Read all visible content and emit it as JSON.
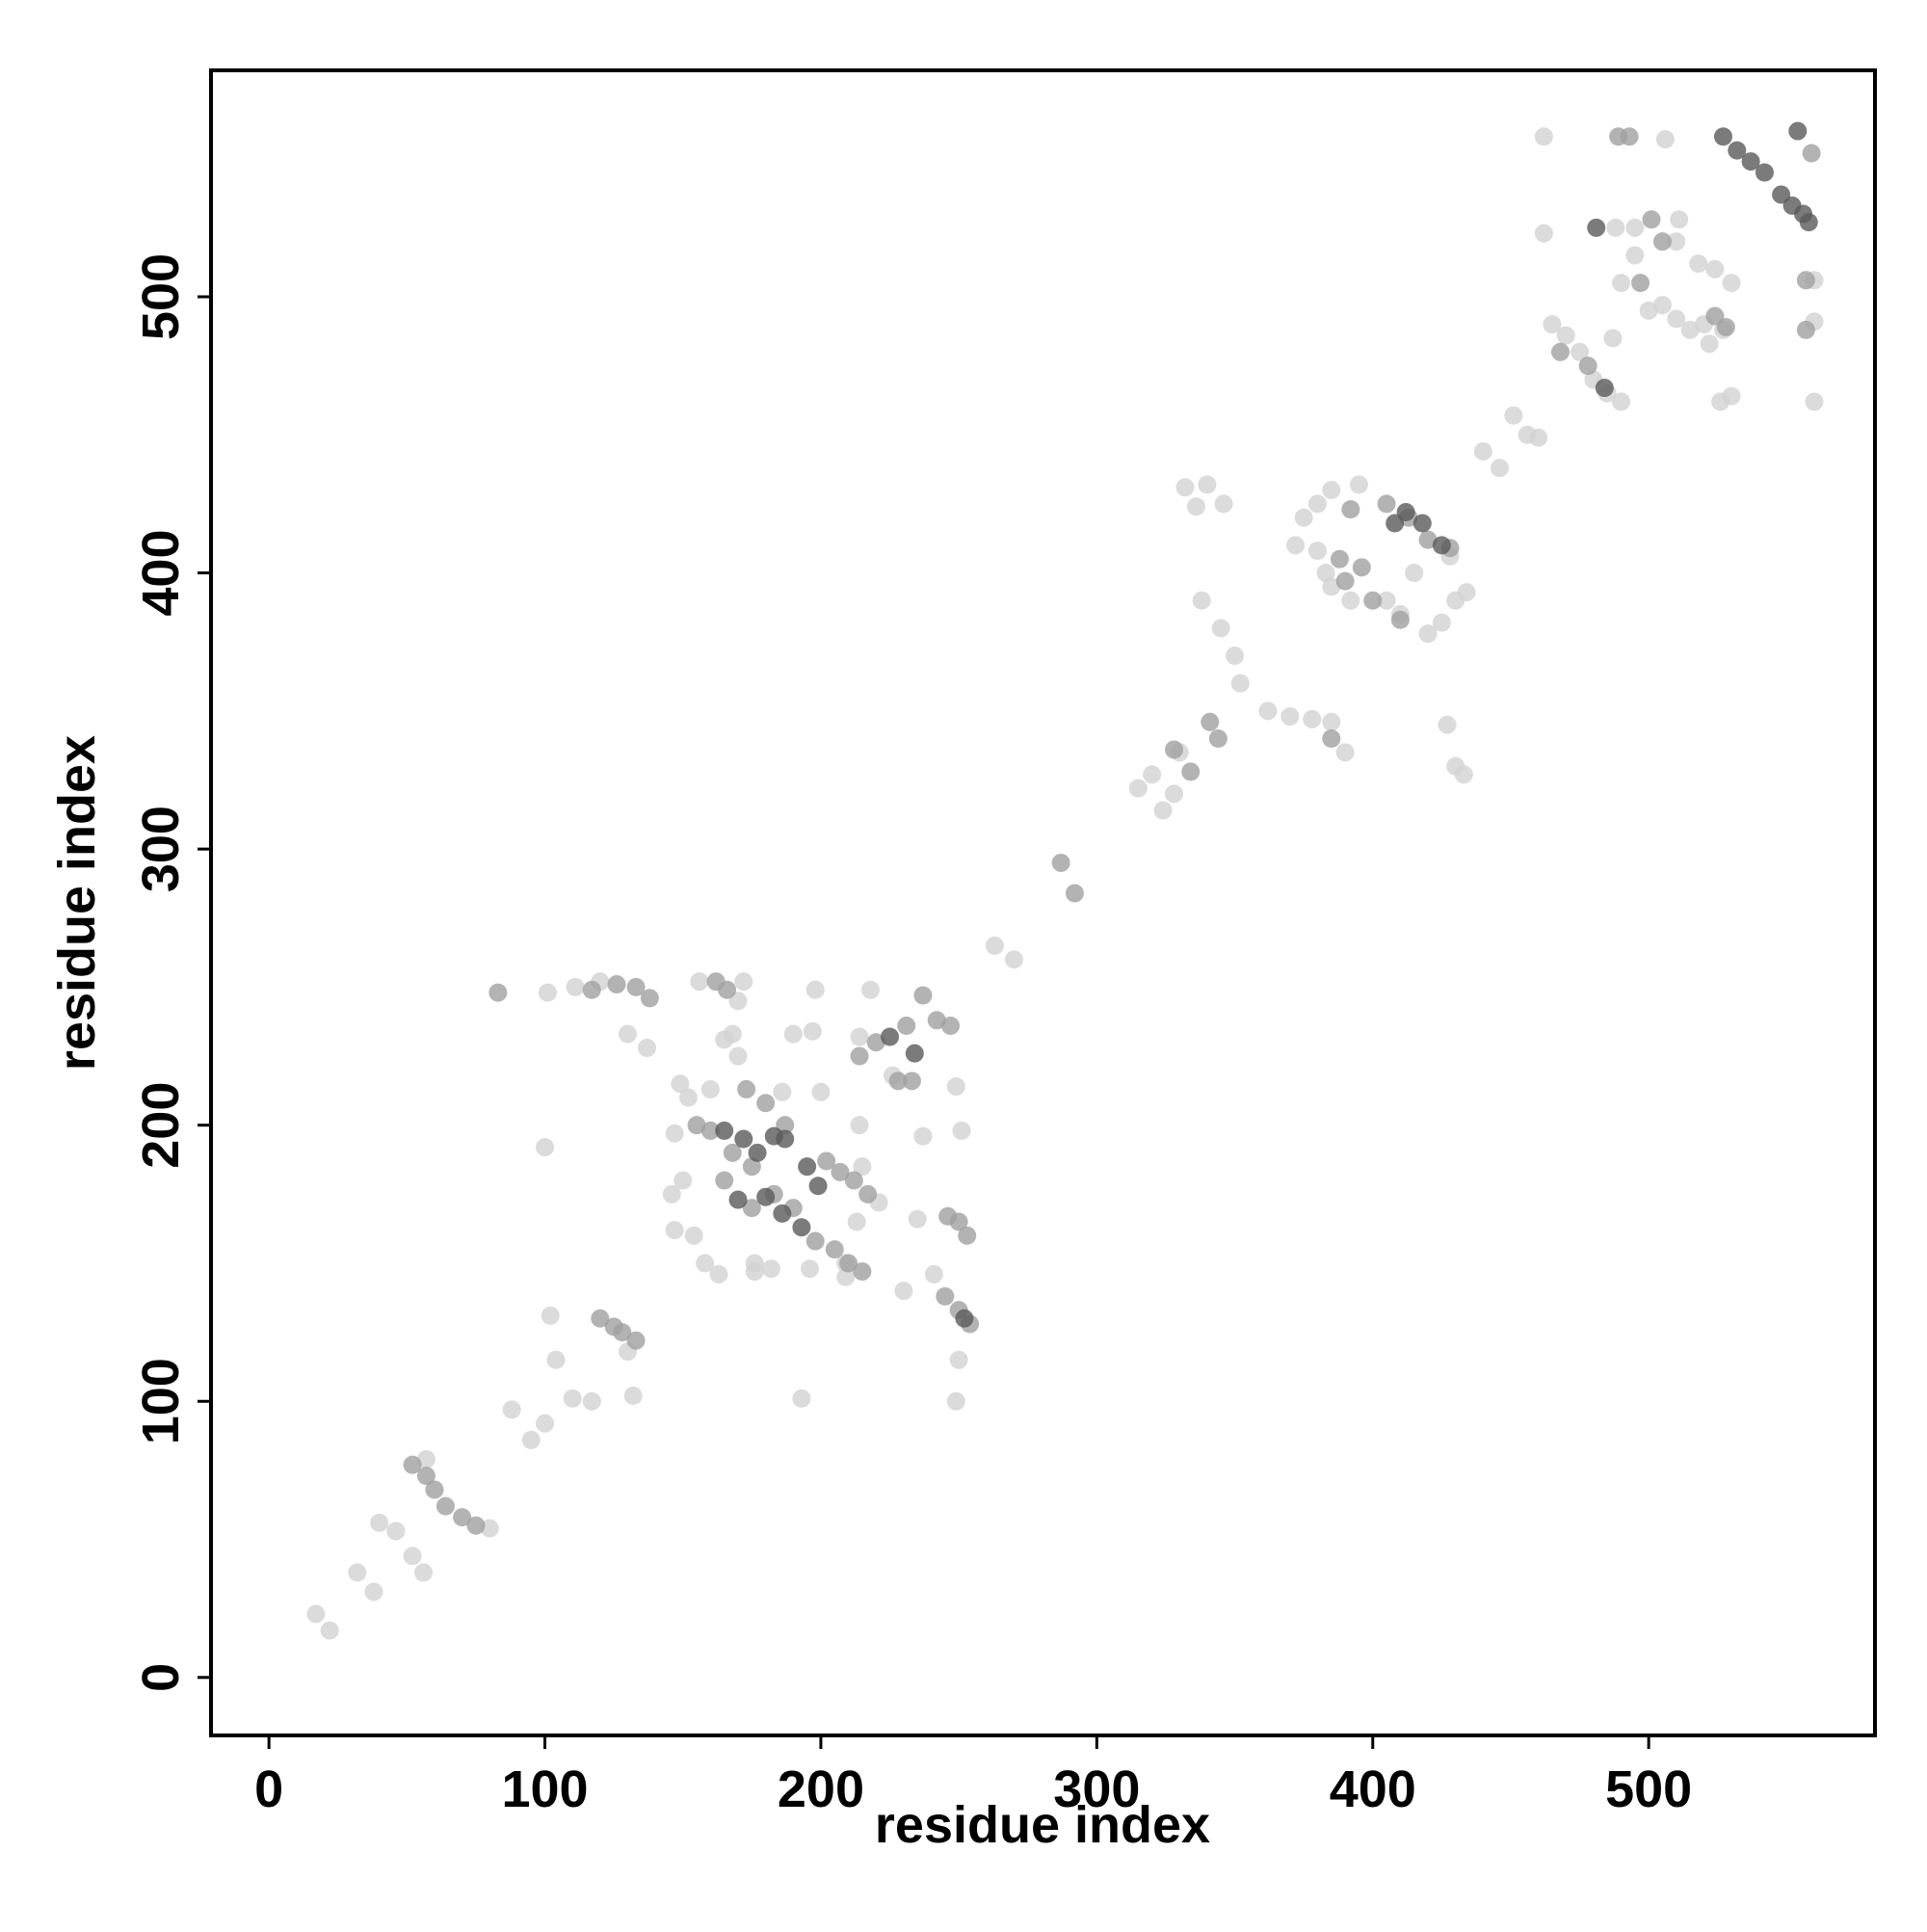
{
  "chart_data": {
    "type": "scatter",
    "xlabel": "residue index",
    "ylabel": "residue index",
    "xlim": [
      -21,
      582
    ],
    "ylim": [
      -21,
      582
    ],
    "xticks": [
      0,
      100,
      200,
      300,
      400,
      500
    ],
    "yticks": [
      0,
      100,
      200,
      300,
      400,
      500
    ],
    "opacity": 0.8,
    "series": [
      {
        "color": "#d2d2d2",
        "x": [
          17,
          22,
          32,
          38,
          40,
          46,
          52,
          56,
          57,
          80,
          88,
          95,
          100,
          102,
          100,
          101,
          104,
          110,
          117,
          132,
          130,
          146,
          150,
          147,
          154,
          158,
          163,
          147,
          149,
          152,
          160,
          168,
          170,
          176,
          190,
          197,
          198,
          193,
          196,
          200,
          213,
          214,
          215,
          221,
          230,
          235,
          237,
          241,
          249,
          249,
          251,
          250,
          226,
          214,
          130,
          137,
          156,
          165,
          170,
          172,
          120,
          111,
          209,
          209,
          218,
          186,
          176,
          182,
          263,
          270,
          315,
          320,
          324,
          328,
          330,
          332,
          336,
          346,
          340,
          338,
          345,
          350,
          352,
          362,
          370,
          378,
          385,
          390,
          375,
          380,
          385,
          395,
          372,
          380,
          383,
          385,
          392,
          405,
          410,
          420,
          425,
          430,
          434,
          428,
          415,
          427,
          430,
          433,
          440,
          446,
          451,
          456,
          460,
          462,
          462,
          465,
          470,
          475,
          480,
          485,
          490,
          488,
          490,
          495,
          487,
          495,
          510,
          506,
          511,
          518,
          524,
          530,
          500,
          505,
          510,
          515,
          520,
          527,
          526,
          530,
          560,
          560,
          560,
          522
        ],
        "values": [
          23,
          17,
          38,
          31,
          56,
          53,
          44,
          38,
          79,
          54,
          97,
          86,
          92,
          131,
          192,
          248,
          115,
          101,
          100,
          102,
          118,
          175,
          180,
          162,
          160,
          150,
          146,
          197,
          215,
          210,
          213,
          233,
          225,
          147,
          233,
          234,
          249,
          101,
          148,
          212,
          165,
          200,
          185,
          172,
          140,
          166,
          196,
          146,
          100,
          214,
          198,
          115,
          218,
          232,
          233,
          228,
          252,
          231,
          245,
          252,
          252,
          250,
          145,
          150,
          249,
          212,
          150,
          148,
          265,
          260,
          322,
          327,
          314,
          320,
          335,
          431,
          424,
          425,
          432,
          390,
          380,
          370,
          360,
          350,
          348,
          347,
          346,
          335,
          420,
          425,
          430,
          432,
          410,
          408,
          400,
          395,
          390,
          390,
          385,
          378,
          382,
          390,
          393,
          406,
          400,
          345,
          330,
          327,
          444,
          438,
          457,
          450,
          449,
          558,
          523,
          490,
          486,
          480,
          470,
          465,
          462,
          525,
          505,
          515,
          485,
          525,
          520,
          557,
          528,
          512,
          510,
          505,
          495,
          497,
          492,
          488,
          490,
          488,
          462,
          464,
          506,
          491,
          462,
          483
        ]
      },
      {
        "color": "#a0a0a0",
        "x": [
          52,
          57,
          60,
          64,
          70,
          75,
          83,
          120,
          125,
          128,
          133,
          117,
          126,
          133,
          138,
          162,
          166,
          173,
          180,
          187,
          155,
          160,
          168,
          175,
          183,
          190,
          198,
          205,
          210,
          215,
          214,
          220,
          231,
          237,
          242,
          247,
          246,
          250,
          253,
          245,
          250,
          254,
          202,
          207,
          212,
          217,
          228,
          233,
          175,
          165,
          287,
          292,
          328,
          341,
          334,
          344,
          390,
          396,
          400,
          410,
          405,
          413,
          420,
          428,
          388,
          385,
          392,
          468,
          478,
          489,
          493,
          497,
          501,
          505,
          524,
          528,
          557,
          559,
          557
        ],
        "values": [
          77,
          73,
          68,
          62,
          58,
          55,
          248,
          130,
          127,
          125,
          122,
          249,
          251,
          250,
          246,
          252,
          249,
          213,
          208,
          200,
          200,
          198,
          190,
          185,
          175,
          170,
          158,
          155,
          150,
          147,
          225,
          230,
          236,
          247,
          238,
          236,
          167,
          165,
          160,
          138,
          133,
          128,
          187,
          183,
          180,
          175,
          216,
          216,
          170,
          180,
          295,
          284,
          336,
          346,
          328,
          340,
          397,
          402,
          390,
          383,
          425,
          420,
          412,
          409,
          405,
          340,
          423,
          480,
          475,
          558,
          558,
          505,
          528,
          520,
          493,
          489,
          488,
          552,
          506
        ]
      },
      {
        "color": "#5a5a5a",
        "x": [
          165,
          172,
          177,
          183,
          187,
          195,
          199,
          180,
          186,
          193,
          225,
          234,
          252,
          481,
          527,
          532,
          537,
          542,
          548,
          552,
          556,
          558,
          554,
          484,
          412,
          418,
          425,
          408,
          170
        ],
        "values": [
          198,
          195,
          190,
          196,
          195,
          185,
          178,
          174,
          168,
          163,
          232,
          226,
          130,
          525,
          558,
          553,
          549,
          545,
          537,
          533,
          530,
          527,
          560,
          467,
          422,
          418,
          410,
          418,
          173
        ]
      }
    ]
  }
}
